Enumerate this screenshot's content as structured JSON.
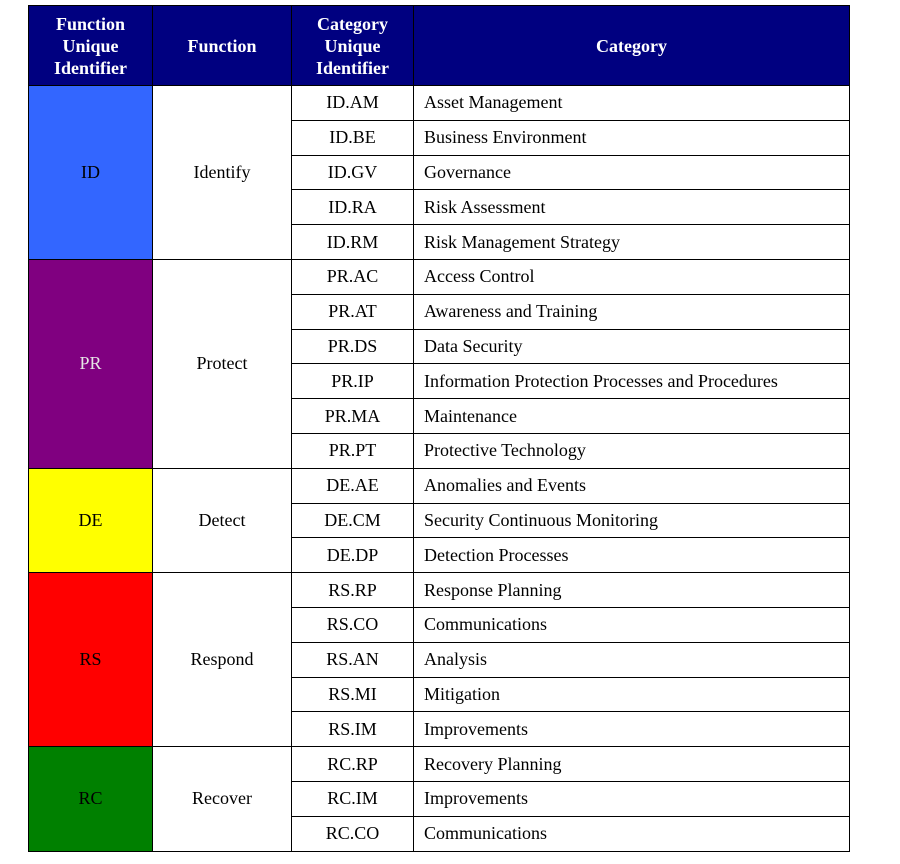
{
  "header": [
    "Function Unique Identifier",
    "Function",
    "Category Unique Identifier",
    "Category"
  ],
  "functions": [
    {
      "id": "ID",
      "name": "Identify",
      "color": "#3366ff",
      "text_color": "#000000",
      "categories": [
        {
          "id": "ID.AM",
          "name": "Asset Management"
        },
        {
          "id": "ID.BE",
          "name": "Business Environment"
        },
        {
          "id": "ID.GV",
          "name": "Governance"
        },
        {
          "id": "ID.RA",
          "name": "Risk Assessment"
        },
        {
          "id": "ID.RM",
          "name": "Risk Management Strategy"
        }
      ]
    },
    {
      "id": "PR",
      "name": "Protect",
      "color": "#800080",
      "text_color": "#e6e6e6",
      "categories": [
        {
          "id": "PR.AC",
          "name": "Access Control"
        },
        {
          "id": "PR.AT",
          "name": "Awareness and Training"
        },
        {
          "id": "PR.DS",
          "name": "Data Security"
        },
        {
          "id": "PR.IP",
          "name": "Information Protection Processes and Procedures"
        },
        {
          "id": "PR.MA",
          "name": "Maintenance"
        },
        {
          "id": "PR.PT",
          "name": "Protective Technology"
        }
      ]
    },
    {
      "id": "DE",
      "name": "Detect",
      "color": "#ffff00",
      "text_color": "#000000",
      "categories": [
        {
          "id": "DE.AE",
          "name": "Anomalies and Events"
        },
        {
          "id": "DE.CM",
          "name": "Security Continuous Monitoring"
        },
        {
          "id": "DE.DP",
          "name": "Detection Processes"
        }
      ]
    },
    {
      "id": "RS",
      "name": "Respond",
      "color": "#ff0000",
      "text_color": "#000000",
      "categories": [
        {
          "id": "RS.RP",
          "name": "Response Planning"
        },
        {
          "id": "RS.CO",
          "name": "Communications"
        },
        {
          "id": "RS.AN",
          "name": "Analysis"
        },
        {
          "id": "RS.MI",
          "name": "Mitigation"
        },
        {
          "id": "RS.IM",
          "name": "Improvements"
        }
      ]
    },
    {
      "id": "RC",
      "name": "Recover",
      "color": "#008000",
      "text_color": "#000000",
      "categories": [
        {
          "id": "RC.RP",
          "name": "Recovery Planning"
        },
        {
          "id": "RC.IM",
          "name": "Improvements"
        },
        {
          "id": "RC.CO",
          "name": "Communications"
        }
      ]
    }
  ]
}
